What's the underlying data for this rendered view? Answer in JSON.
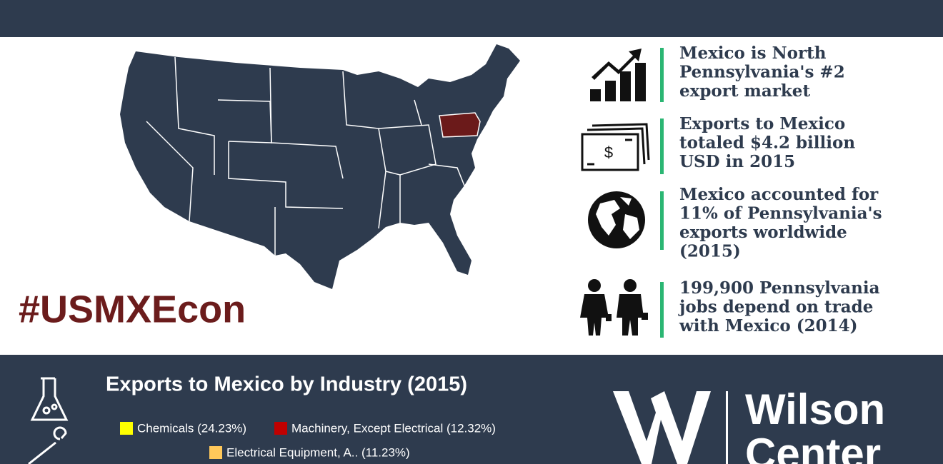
{
  "hashtag": "#USMXEcon",
  "facts": [
    {
      "lines": [
        "Mexico is North",
        "Pennsylvania's #2",
        "export market"
      ]
    },
    {
      "lines": [
        "Exports to Mexico",
        "totaled $4.2 billion",
        "USD in 2015"
      ]
    },
    {
      "lines": [
        "Mexico accounted for",
        "11% of Pennsylvania's",
        "exports worldwide",
        "(2015)"
      ]
    },
    {
      "lines": [
        "199,900 Pennsylvania",
        "jobs depend on trade",
        "with Mexico (2014)"
      ]
    }
  ],
  "industry": {
    "title": "Exports to Mexico by Industry (2015)",
    "legend": [
      {
        "label": "Chemicals (24.23%)",
        "color": "#ffff00"
      },
      {
        "label": "Machinery, Except Electrical (12.32%)",
        "color": "#c00000"
      },
      {
        "label": "Electrical Equipment, A.. (11.23%)",
        "color": "#ffc85a"
      }
    ]
  },
  "logo": {
    "lines": [
      "Wilson",
      "Center"
    ]
  }
}
